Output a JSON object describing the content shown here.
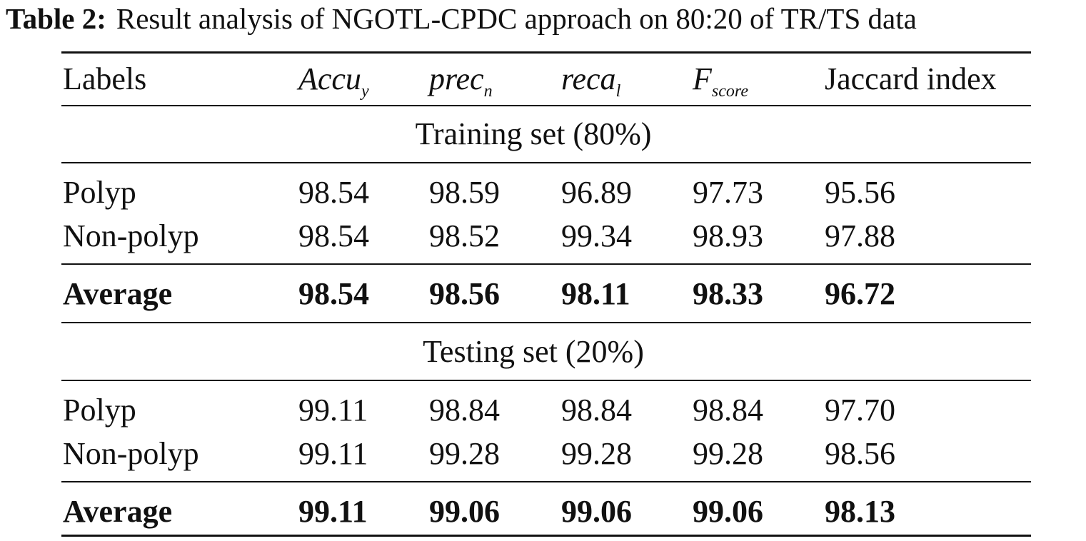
{
  "caption": {
    "label": "Table 2:",
    "text": "Result analysis of NGOTL-CPDC approach on 80:20 of TR/TS data"
  },
  "header": {
    "labels": "Labels",
    "accuracy": {
      "base": "Accu",
      "sub": "y"
    },
    "precision": {
      "base": "prec",
      "sub": "n"
    },
    "recall": {
      "base": "reca",
      "sub": "l"
    },
    "fscore": {
      "base": "F",
      "sub": "score"
    },
    "jaccard": "Jaccard index"
  },
  "training": {
    "title": "Training set (80%)",
    "rows": [
      {
        "label": "Polyp",
        "accu": "98.54",
        "prec": "98.59",
        "reca": "96.89",
        "fscore": "97.73",
        "jaccard": "95.56"
      },
      {
        "label": "Non-polyp",
        "accu": "98.54",
        "prec": "98.52",
        "reca": "99.34",
        "fscore": "98.93",
        "jaccard": "97.88"
      }
    ],
    "average": {
      "label": "Average",
      "accu": "98.54",
      "prec": "98.56",
      "reca": "98.11",
      "fscore": "98.33",
      "jaccard": "96.72"
    }
  },
  "testing": {
    "title": "Testing set (20%)",
    "rows": [
      {
        "label": "Polyp",
        "accu": "99.11",
        "prec": "98.84",
        "reca": "98.84",
        "fscore": "98.84",
        "jaccard": "97.70"
      },
      {
        "label": "Non-polyp",
        "accu": "99.11",
        "prec": "99.28",
        "reca": "99.28",
        "fscore": "99.28",
        "jaccard": "98.56"
      }
    ],
    "average": {
      "label": "Average",
      "accu": "99.11",
      "prec": "99.06",
      "reca": "99.06",
      "fscore": "99.06",
      "jaccard": "98.13"
    }
  }
}
